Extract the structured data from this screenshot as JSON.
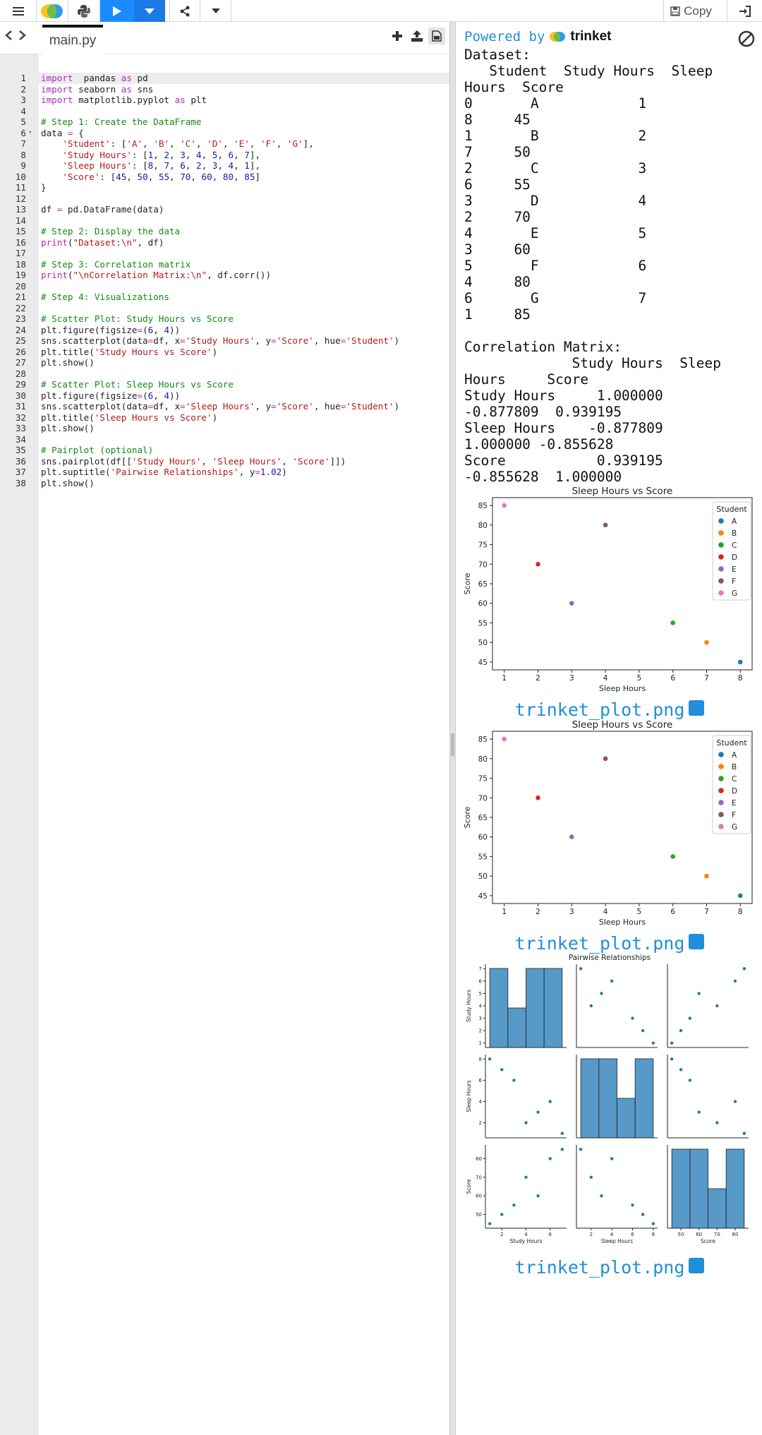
{
  "toolbar": {
    "copy_label": "Copy"
  },
  "editor": {
    "filename": "main.py",
    "lines": [
      [
        [
          "kw",
          "import"
        ],
        [
          "",
          "  pandas "
        ],
        [
          "kw",
          "as"
        ],
        [
          "",
          " pd"
        ]
      ],
      [
        [
          "kw",
          "import"
        ],
        [
          "",
          " seaborn "
        ],
        [
          "kw",
          "as"
        ],
        [
          "",
          " sns"
        ]
      ],
      [
        [
          "kw",
          "import"
        ],
        [
          "",
          " matplotlib.pyplot "
        ],
        [
          "kw",
          "as"
        ],
        [
          "",
          " plt"
        ]
      ],
      [],
      [
        [
          "com",
          "# Step 1: Create the DataFrame"
        ]
      ],
      [
        [
          "",
          "data "
        ],
        [
          "kw",
          "="
        ],
        [
          "",
          " {"
        ]
      ],
      [
        [
          "",
          "    "
        ],
        [
          "str",
          "'Student'"
        ],
        [
          "",
          ": ["
        ],
        [
          "str",
          "'A'"
        ],
        [
          "",
          ", "
        ],
        [
          "str",
          "'B'"
        ],
        [
          "",
          ", "
        ],
        [
          "str",
          "'C'"
        ],
        [
          "",
          ", "
        ],
        [
          "str",
          "'D'"
        ],
        [
          "",
          ", "
        ],
        [
          "str",
          "'E'"
        ],
        [
          "",
          ", "
        ],
        [
          "str",
          "'F'"
        ],
        [
          "",
          ", "
        ],
        [
          "str",
          "'G'"
        ],
        [
          "",
          "],"
        ]
      ],
      [
        [
          "",
          "    "
        ],
        [
          "str",
          "'Study Hours'"
        ],
        [
          "",
          ": ["
        ],
        [
          "num",
          "1"
        ],
        [
          "",
          ", "
        ],
        [
          "num",
          "2"
        ],
        [
          "",
          ", "
        ],
        [
          "num",
          "3"
        ],
        [
          "",
          ", "
        ],
        [
          "num",
          "4"
        ],
        [
          "",
          ", "
        ],
        [
          "num",
          "5"
        ],
        [
          "",
          ", "
        ],
        [
          "num",
          "6"
        ],
        [
          "",
          ", "
        ],
        [
          "num",
          "7"
        ],
        [
          "",
          "],"
        ]
      ],
      [
        [
          "",
          "    "
        ],
        [
          "str",
          "'Sleep Hours'"
        ],
        [
          "",
          ": ["
        ],
        [
          "num",
          "8"
        ],
        [
          "",
          ", "
        ],
        [
          "num",
          "7"
        ],
        [
          "",
          ", "
        ],
        [
          "num",
          "6"
        ],
        [
          "",
          ", "
        ],
        [
          "num",
          "2"
        ],
        [
          "",
          ", "
        ],
        [
          "num",
          "3"
        ],
        [
          "",
          ", "
        ],
        [
          "num",
          "4"
        ],
        [
          "",
          ", "
        ],
        [
          "num",
          "1"
        ],
        [
          "",
          "],"
        ]
      ],
      [
        [
          "",
          "    "
        ],
        [
          "str",
          "'Score'"
        ],
        [
          "",
          ": ["
        ],
        [
          "num",
          "45"
        ],
        [
          "",
          ", "
        ],
        [
          "num",
          "50"
        ],
        [
          "",
          ", "
        ],
        [
          "num",
          "55"
        ],
        [
          "",
          ", "
        ],
        [
          "num",
          "70"
        ],
        [
          "",
          ", "
        ],
        [
          "num",
          "60"
        ],
        [
          "",
          ", "
        ],
        [
          "num",
          "80"
        ],
        [
          "",
          ", "
        ],
        [
          "num",
          "85"
        ],
        [
          "",
          "]"
        ]
      ],
      [
        [
          "",
          "}"
        ]
      ],
      [],
      [
        [
          "",
          "df "
        ],
        [
          "kw",
          "="
        ],
        [
          "",
          " pd.DataFrame(data)"
        ]
      ],
      [],
      [
        [
          "com",
          "# Step 2: Display the data"
        ]
      ],
      [
        [
          "fn",
          "print"
        ],
        [
          "",
          "("
        ],
        [
          "str",
          "\"Dataset:\\n\""
        ],
        [
          "",
          ", df)"
        ]
      ],
      [],
      [
        [
          "com",
          "# Step 3: Correlation matrix"
        ]
      ],
      [
        [
          "fn",
          "print"
        ],
        [
          "",
          "("
        ],
        [
          "str",
          "\"\\nCorrelation Matrix:\\n\""
        ],
        [
          "",
          ", df.corr())"
        ]
      ],
      [],
      [
        [
          "com",
          "# Step 4: Visualizations"
        ]
      ],
      [],
      [
        [
          "com",
          "# Scatter Plot: Study Hours vs Score"
        ]
      ],
      [
        [
          "",
          "plt.figure(figsize"
        ],
        [
          "kw",
          "="
        ],
        [
          "",
          "("
        ],
        [
          "num",
          "6"
        ],
        [
          "",
          ", "
        ],
        [
          "num",
          "4"
        ],
        [
          "",
          "))"
        ]
      ],
      [
        [
          "",
          "sns.scatterplot(data"
        ],
        [
          "kw",
          "="
        ],
        [
          "",
          "df, x"
        ],
        [
          "kw",
          "="
        ],
        [
          "str",
          "'Study Hours'"
        ],
        [
          "",
          ", y"
        ],
        [
          "kw",
          "="
        ],
        [
          "str",
          "'Score'"
        ],
        [
          "",
          ", hue"
        ],
        [
          "kw",
          "="
        ],
        [
          "str",
          "'Student'"
        ],
        [
          "",
          ")"
        ]
      ],
      [
        [
          "",
          "plt.title("
        ],
        [
          "str",
          "'Study Hours vs Score'"
        ],
        [
          "",
          ")"
        ]
      ],
      [
        [
          "",
          "plt.show()"
        ]
      ],
      [],
      [
        [
          "com",
          "# Scatter Plot: Sleep Hours vs Score"
        ]
      ],
      [
        [
          "",
          "plt.figure(figsize"
        ],
        [
          "kw",
          "="
        ],
        [
          "",
          "("
        ],
        [
          "num",
          "6"
        ],
        [
          "",
          ", "
        ],
        [
          "num",
          "4"
        ],
        [
          "",
          "))"
        ]
      ],
      [
        [
          "",
          "sns.scatterplot(data"
        ],
        [
          "kw",
          "="
        ],
        [
          "",
          "df, x"
        ],
        [
          "kw",
          "="
        ],
        [
          "str",
          "'Sleep Hours'"
        ],
        [
          "",
          ", y"
        ],
        [
          "kw",
          "="
        ],
        [
          "str",
          "'Score'"
        ],
        [
          "",
          ", hue"
        ],
        [
          "kw",
          "="
        ],
        [
          "str",
          "'Student'"
        ],
        [
          "",
          ")"
        ]
      ],
      [
        [
          "",
          "plt.title("
        ],
        [
          "str",
          "'Sleep Hours vs Score'"
        ],
        [
          "",
          ")"
        ]
      ],
      [
        [
          "",
          "plt.show()"
        ]
      ],
      [],
      [
        [
          "com",
          "# Pairplot (optional)"
        ]
      ],
      [
        [
          "",
          "sns.pairplot(df[["
        ],
        [
          "str",
          "'Study Hours'"
        ],
        [
          "",
          ", "
        ],
        [
          "str",
          "'Sleep Hours'"
        ],
        [
          "",
          ", "
        ],
        [
          "str",
          "'Score'"
        ],
        [
          "",
          "]])"
        ]
      ],
      [
        [
          "",
          "plt.suptitle("
        ],
        [
          "str",
          "'Pairwise Relationships'"
        ],
        [
          "",
          ", y"
        ],
        [
          "kw",
          "="
        ],
        [
          "num",
          "1.02"
        ],
        [
          "",
          ")"
        ]
      ],
      [
        [
          "",
          "plt.show()"
        ]
      ]
    ]
  },
  "output": {
    "powered_by": "Powered by",
    "brand": "trinket",
    "console_text": "Dataset:\n   Student  Study Hours  Sleep\nHours  Score\n0       A            1\n8     45\n1       B            2\n7     50\n2       C            3\n6     55\n3       D            4\n2     70\n4       E            5\n3     60\n5       F            6\n4     80\n6       G            7\n1     85\n\nCorrelation Matrix:\n             Study Hours  Sleep\nHours     Score\nStudy Hours     1.000000\n-0.877809  0.939195\nSleep Hours    -0.877809\n1.000000 -0.855628\nScore           0.939195\n-0.855628  1.000000",
    "plot_caption": "trinket_plot.png"
  },
  "chart_data": [
    {
      "type": "scatter",
      "title": "Sleep Hours vs Score",
      "xlabel": "Sleep Hours",
      "ylabel": "Score",
      "xlim": [
        0.65,
        8.35
      ],
      "ylim": [
        43,
        87
      ],
      "xticks": [
        1,
        2,
        3,
        4,
        5,
        6,
        7,
        8
      ],
      "yticks": [
        45,
        50,
        55,
        60,
        65,
        70,
        75,
        80,
        85
      ],
      "legend_title": "Student",
      "legend_position": "top-right",
      "series": [
        {
          "name": "A",
          "color": "#1f77b4",
          "points": [
            [
              8,
              45
            ]
          ]
        },
        {
          "name": "B",
          "color": "#ff7f0e",
          "points": [
            [
              7,
              50
            ]
          ]
        },
        {
          "name": "C",
          "color": "#2ca02c",
          "points": [
            [
              6,
              55
            ]
          ]
        },
        {
          "name": "D",
          "color": "#d62728",
          "points": [
            [
              2,
              70
            ]
          ]
        },
        {
          "name": "E",
          "color": "#9467bd",
          "points": [
            [
              3,
              60
            ]
          ]
        },
        {
          "name": "F",
          "color": "#8c564b",
          "points": [
            [
              4,
              80
            ]
          ]
        },
        {
          "name": "G",
          "color": "#e377c2",
          "points": [
            [
              1,
              85
            ]
          ]
        }
      ]
    },
    {
      "type": "scatter",
      "title": "Sleep Hours vs Score",
      "xlabel": "Sleep Hours",
      "ylabel": "Score",
      "xlim": [
        0.65,
        8.35
      ],
      "ylim": [
        43,
        87
      ],
      "xticks": [
        1,
        2,
        3,
        4,
        5,
        6,
        7,
        8
      ],
      "yticks": [
        45,
        50,
        55,
        60,
        65,
        70,
        75,
        80,
        85
      ],
      "legend_title": "Student",
      "legend_position": "top-right",
      "series": [
        {
          "name": "A",
          "color": "#1f77b4",
          "points": [
            [
              8,
              45
            ]
          ]
        },
        {
          "name": "B",
          "color": "#ff7f0e",
          "points": [
            [
              7,
              50
            ]
          ]
        },
        {
          "name": "C",
          "color": "#2ca02c",
          "points": [
            [
              6,
              55
            ]
          ]
        },
        {
          "name": "D",
          "color": "#d62728",
          "points": [
            [
              2,
              70
            ]
          ]
        },
        {
          "name": "E",
          "color": "#9467bd",
          "points": [
            [
              3,
              60
            ]
          ]
        },
        {
          "name": "F",
          "color": "#8c564b",
          "points": [
            [
              4,
              80
            ]
          ]
        },
        {
          "name": "G",
          "color": "#e377c2",
          "points": [
            [
              1,
              85
            ]
          ]
        }
      ]
    },
    {
      "type": "pairplot",
      "title": "Pairwise Relationships",
      "variables": [
        "Study Hours",
        "Sleep Hours",
        "Score"
      ],
      "data": {
        "Study Hours": [
          1,
          2,
          3,
          4,
          5,
          6,
          7
        ],
        "Sleep Hours": [
          8,
          7,
          6,
          2,
          3,
          4,
          1
        ],
        "Score": [
          45,
          50,
          55,
          70,
          60,
          80,
          85
        ]
      },
      "ticks": {
        "Study Hours": [
          1,
          2,
          3,
          4,
          5,
          6,
          7
        ],
        "Sleep Hours": [
          2,
          4,
          6,
          8
        ],
        "Score": [
          50,
          60,
          70,
          80
        ]
      },
      "diag_ticks": {
        "Study Hours": [
          2,
          4,
          6
        ],
        "Sleep Hours": [
          2,
          4,
          6,
          8
        ],
        "Score": [
          50,
          60,
          70,
          80
        ]
      },
      "hist_bins": 4,
      "color": "#1f77b4"
    }
  ]
}
